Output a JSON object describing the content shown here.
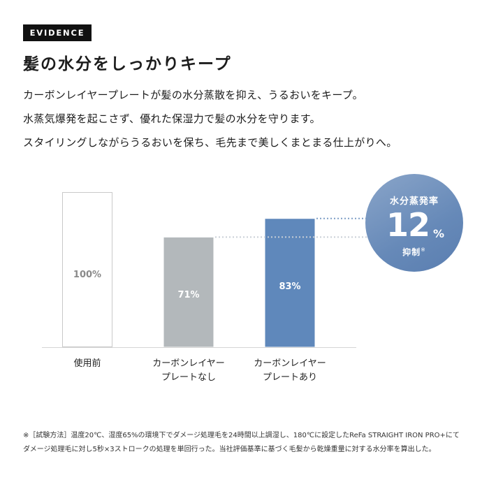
{
  "badge": "EVIDENCE",
  "headline": "髪の水分をしっかりキープ",
  "body_lines": [
    "カーボンレイヤープレートが髪の水分蒸散を抑え、うるおいをキープ。",
    "水蒸気爆発を起こさず、優れた保湿力で髪の水分を守ります。",
    "スタイリングしながらうるおいを保ち、毛先まで美しくまとまる仕上がりへ。"
  ],
  "circle": {
    "top": "水分蒸発率",
    "value": "12",
    "unit": "%",
    "bottom": "抑制",
    "mark": "※"
  },
  "chart_data": {
    "type": "bar",
    "categories": [
      [
        "使用前"
      ],
      [
        "カーボンレイヤー",
        "プレートなし"
      ],
      [
        "カーボンレイヤー",
        "プレートあり"
      ]
    ],
    "values": [
      100,
      71,
      83
    ],
    "value_labels": [
      "100%",
      "71%",
      "83%"
    ],
    "ylim": [
      0,
      100
    ],
    "colors": [
      "#ffffff",
      "#b3b8bb",
      "#5f88bb"
    ],
    "grid": false,
    "title": "",
    "xlabel": "",
    "ylabel": ""
  },
  "footnote": "※［試験方法］温度20℃、湿度65%の環境下でダメージ処理毛を24時間以上調湿し、180℃に設定したReFa STRAIGHT IRON PRO+にてダメージ処理毛に対し5秒×3ストロークの処理を単回行った。当社評価基準に基づく毛髪から乾燥重量に対する水分率を算出した。"
}
